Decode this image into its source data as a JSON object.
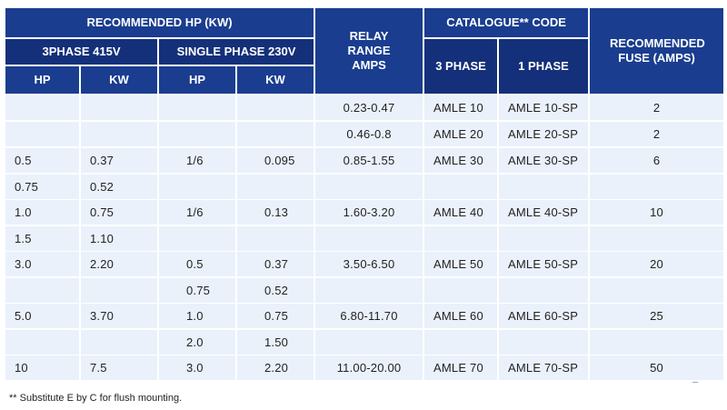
{
  "headers": {
    "recommended_hp": "RECOMMENDED HP (KW)",
    "three_phase_415": "3PHASE 415V",
    "single_phase_230": "SINGLE PHASE 230V",
    "hp": "HP",
    "kw": "KW",
    "relay_range": "RELAY RANGE AMPS",
    "catalogue_code": "CATALOGUE** CODE",
    "three_phase": "3 PHASE",
    "one_phase": "1 PHASE",
    "recommended_fuse": "RECOMMENDED FUSE (AMPS)"
  },
  "rows": [
    {
      "hp3": "",
      "kw3": "",
      "hp1": "",
      "kw1": "",
      "relay": "0.23-0.47",
      "code3": "AMLE 10",
      "code1": "AMLE 10-SP",
      "fuse": "2"
    },
    {
      "hp3": "",
      "kw3": "",
      "hp1": "",
      "kw1": "",
      "relay": "0.46-0.8",
      "code3": "AMLE 20",
      "code1": "AMLE 20-SP",
      "fuse": "2"
    },
    {
      "hp3": "0.5",
      "kw3": "0.37",
      "hp1": "1/6",
      "kw1": "0.095",
      "relay": "0.85-1.55",
      "code3": "AMLE 30",
      "code1": "AMLE 30-SP",
      "fuse": "6"
    },
    {
      "hp3": "0.75",
      "kw3": "0.52",
      "hp1": "",
      "kw1": "",
      "relay": "",
      "code3": "",
      "code1": "",
      "fuse": ""
    },
    {
      "hp3": "1.0",
      "kw3": "0.75",
      "hp1": "1/6",
      "kw1": "0.13",
      "relay": "1.60-3.20",
      "code3": "AMLE 40",
      "code1": "AMLE 40-SP",
      "fuse": "10"
    },
    {
      "hp3": "1.5",
      "kw3": "1.10",
      "hp1": "",
      "kw1": "",
      "relay": "",
      "code3": "",
      "code1": "",
      "fuse": ""
    },
    {
      "hp3": "3.0",
      "kw3": "2.20",
      "hp1": "0.5",
      "kw1": "0.37",
      "relay": "3.50-6.50",
      "code3": "AMLE 50",
      "code1": "AMLE 50-SP",
      "fuse": "20"
    },
    {
      "hp3": "",
      "kw3": "",
      "hp1": "0.75",
      "kw1": "0.52",
      "relay": "",
      "code3": "",
      "code1": "",
      "fuse": ""
    },
    {
      "hp3": "5.0",
      "kw3": "3.70",
      "hp1": "1.0",
      "kw1": "0.75",
      "relay": "6.80-11.70",
      "code3": "AMLE 60",
      "code1": "AMLE 60-SP",
      "fuse": "25"
    },
    {
      "hp3": "",
      "kw3": "",
      "hp1": "2.0",
      "kw1": "1.50",
      "relay": "",
      "code3": "",
      "code1": "",
      "fuse": ""
    },
    {
      "hp3": "10",
      "kw3": "7.5",
      "hp1": "3.0",
      "kw1": "2.20",
      "relay": "11.00-20.00",
      "code3": "AMLE 70",
      "code1": "AMLE 70-SP",
      "fuse": "50"
    }
  ],
  "footnote": "** Substitute E by C for flush mounting."
}
